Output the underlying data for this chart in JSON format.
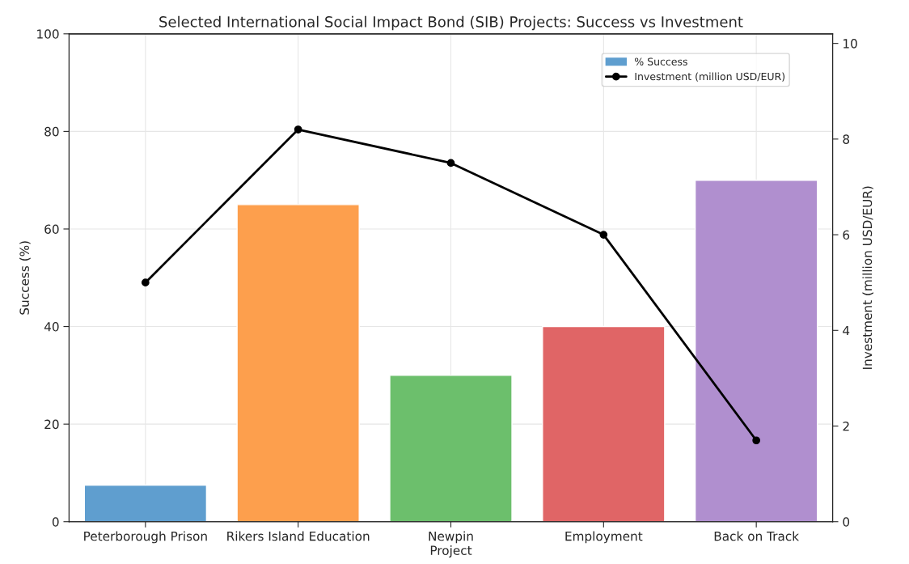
{
  "chart_data": {
    "type": "bar",
    "title": "Selected International Social Impact Bond (SIB) Projects: Success vs Investment",
    "xlabel": "Project",
    "ylabel": "Success (%)",
    "y2label": "Investment (million USD/EUR)",
    "categories": [
      "Peterborough Prison",
      "Rikers Island Education",
      "Newpin",
      "Employment",
      "Back on Track"
    ],
    "series": [
      {
        "name": "% Success",
        "color": "#5f9ecf",
        "colors": [
          "#5f9ecf",
          "#fd9f4d",
          "#6cbf6c",
          "#e06566",
          "#b08fcf"
        ],
        "values": [
          7.5,
          65,
          30,
          40,
          70
        ]
      },
      {
        "name": "Investment (million USD/EUR)",
        "type": "line",
        "axis": "y2",
        "color": "#000000",
        "marker": "circle",
        "values": [
          5.0,
          8.2,
          7.5,
          6.0,
          1.7
        ]
      }
    ],
    "ylim": [
      0,
      100
    ],
    "yticks": [
      0,
      20,
      40,
      60,
      80,
      100
    ],
    "y2lim": [
      0,
      10.2
    ],
    "y2ticks": [
      0,
      2,
      4,
      6,
      8,
      10
    ],
    "grid": true,
    "legend": "top right"
  }
}
